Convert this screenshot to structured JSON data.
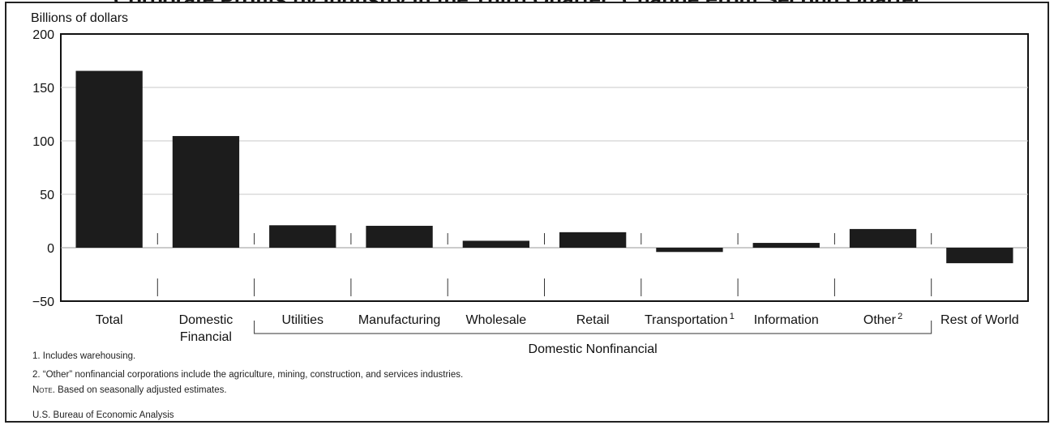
{
  "chart_data": {
    "type": "bar",
    "title": "Corporate Profits by Industry in the Third Quarter: Change From Second Quarter",
    "ylabel": "Billions of dollars",
    "ylim": [
      -50,
      200
    ],
    "yticks": [
      "200",
      "150",
      "100",
      "50",
      "0",
      "−50"
    ],
    "grid": true,
    "categories": [
      "Total",
      "Domestic Financial",
      "Utilities",
      "Manufacturing",
      "Wholesale",
      "Retail",
      "Transportation",
      "Information",
      "Other",
      "Rest of World"
    ],
    "category_lines": [
      [
        "Total"
      ],
      [
        "Domestic",
        "Financial"
      ],
      [
        "Utilities"
      ],
      [
        "Manufacturing"
      ],
      [
        "Wholesale"
      ],
      [
        "Retail"
      ],
      [
        "Transportation"
      ],
      [
        "Information"
      ],
      [
        "Other"
      ],
      [
        "Rest of World"
      ]
    ],
    "category_sups": [
      "",
      "",
      "",
      "",
      "",
      "",
      "1",
      "",
      "2",
      ""
    ],
    "values": [
      165.5,
      104.5,
      21.0,
      20.5,
      6.5,
      14.5,
      -4.0,
      4.5,
      17.5,
      -14.5
    ],
    "group_label": "Domestic Nonfinancial",
    "bar_color": "#1c1c1c"
  },
  "footnotes": {
    "fn1": "1. Includes warehousing.",
    "fn2": "2. “Other” nonfinancial corporations include the agriculture, mining, construction, and services industries.",
    "note_label": "Note",
    "note_text": ". Based on seasonally adjusted estimates.",
    "source": "U.S. Bureau of Economic Analysis"
  }
}
